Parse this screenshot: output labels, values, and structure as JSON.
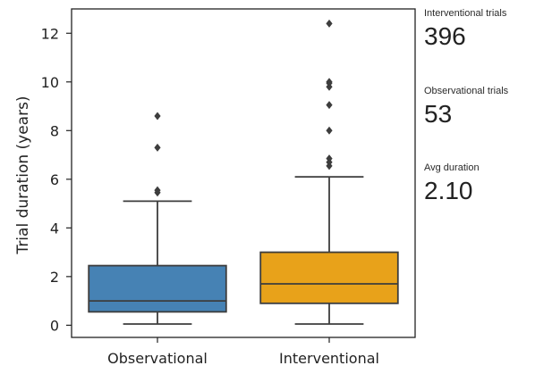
{
  "chart_data": {
    "type": "boxplot",
    "title": "",
    "xlabel": "",
    "ylabel": "Trial duration (years)",
    "ylim": [
      -0.5,
      13
    ],
    "yticks": [
      0,
      2,
      4,
      6,
      8,
      10,
      12
    ],
    "grid": false,
    "categories": [
      "Observational",
      "Interventional"
    ],
    "series": [
      {
        "category": "Observational",
        "color": "#4682b4",
        "whisker_low": 0.05,
        "q1": 0.55,
        "median": 1.0,
        "q3": 2.45,
        "whisker_high": 5.1,
        "outliers": [
          5.45,
          5.55,
          7.3,
          8.6
        ]
      },
      {
        "category": "Interventional",
        "color": "#e8a21a",
        "whisker_low": 0.05,
        "q1": 0.9,
        "median": 1.7,
        "q3": 3.0,
        "whisker_high": 6.1,
        "outliers": [
          6.55,
          6.7,
          6.85,
          8.0,
          9.05,
          9.8,
          9.95,
          10.0,
          12.4
        ]
      }
    ]
  },
  "stats": [
    {
      "label": "Interventional trials",
      "value": "396"
    },
    {
      "label": "Observational trials",
      "value": "53"
    },
    {
      "label": "Avg duration",
      "value": "2.10"
    }
  ]
}
